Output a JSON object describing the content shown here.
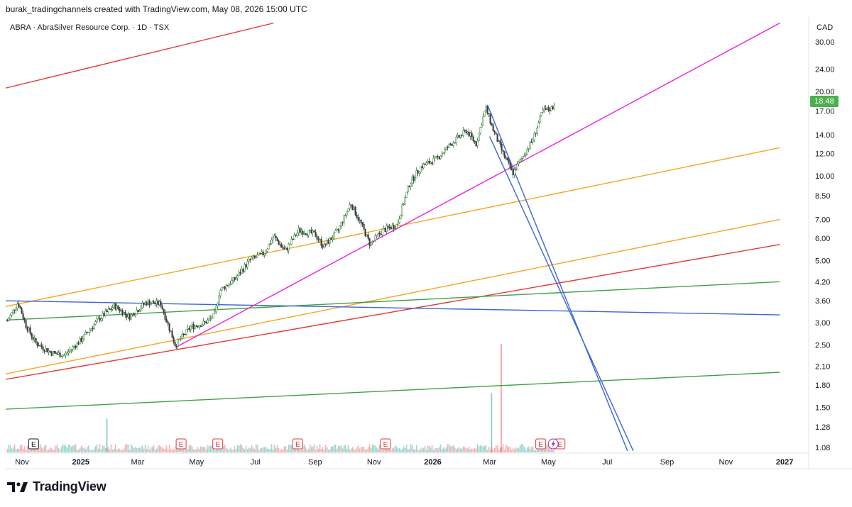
{
  "header": {
    "credit": "burak_tradingchannels created with TradingView.com, May 08, 2026 15:00 UTC"
  },
  "brand": {
    "name": "TradingView"
  },
  "chart_data": {
    "type": "candlestick",
    "title": "ABRA · AbraSilver Resource Corp. · 1D · TSX",
    "currency": "CAD",
    "last_price": "18.48",
    "y_scale": "log",
    "ylim": [
      1.05,
      33
    ],
    "y_ticks": [
      "30.00",
      "24.00",
      "20.00",
      "17.00",
      "14.00",
      "12.00",
      "10.00",
      "8.50",
      "7.00",
      "6.00",
      "5.00",
      "4.20",
      "3.60",
      "3.00",
      "2.50",
      "2.10",
      "1.80",
      "1.50",
      "1.28",
      "1.08"
    ],
    "x_ticks": [
      "Nov",
      "2025",
      "Mar",
      "May",
      "Jul",
      "Sep",
      "Nov",
      "2026",
      "Mar",
      "May",
      "Jul",
      "Sep",
      "Nov",
      "2027"
    ],
    "price_path": [
      [
        "2024-10-17",
        3.05
      ],
      [
        "2024-10-28",
        3.55
      ],
      [
        "2024-11-05",
        2.95
      ],
      [
        "2024-11-15",
        2.55
      ],
      [
        "2024-12-01",
        2.35
      ],
      [
        "2024-12-15",
        2.3
      ],
      [
        "2025-01-01",
        2.6
      ],
      [
        "2025-01-20",
        3.1
      ],
      [
        "2025-02-05",
        3.45
      ],
      [
        "2025-02-20",
        3.15
      ],
      [
        "2025-03-10",
        3.55
      ],
      [
        "2025-03-25",
        3.5
      ],
      [
        "2025-04-09",
        2.5
      ],
      [
        "2025-04-25",
        2.9
      ],
      [
        "2025-05-10",
        3.0
      ],
      [
        "2025-05-20",
        3.2
      ],
      [
        "2025-05-25",
        3.9
      ],
      [
        "2025-06-10",
        4.3
      ],
      [
        "2025-06-25",
        5.0
      ],
      [
        "2025-07-10",
        5.3
      ],
      [
        "2025-07-20",
        6.1
      ],
      [
        "2025-08-01",
        5.4
      ],
      [
        "2025-08-15",
        6.4
      ],
      [
        "2025-09-01",
        6.2
      ],
      [
        "2025-09-10",
        5.6
      ],
      [
        "2025-09-25",
        6.4
      ],
      [
        "2025-10-08",
        8.0
      ],
      [
        "2025-10-20",
        6.6
      ],
      [
        "2025-10-28",
        5.7
      ],
      [
        "2025-11-10",
        6.4
      ],
      [
        "2025-11-25",
        6.7
      ],
      [
        "2025-12-08",
        9.4
      ],
      [
        "2025-12-20",
        10.8
      ],
      [
        "2026-01-05",
        11.5
      ],
      [
        "2026-01-20",
        13.0
      ],
      [
        "2026-02-05",
        14.5
      ],
      [
        "2026-02-15",
        13.0
      ],
      [
        "2026-02-25",
        17.5
      ],
      [
        "2026-03-05",
        14.5
      ],
      [
        "2026-03-15",
        12.0
      ],
      [
        "2026-03-25",
        10.2
      ],
      [
        "2026-04-05",
        11.8
      ],
      [
        "2026-04-15",
        13.5
      ],
      [
        "2026-04-25",
        17.0
      ],
      [
        "2026-05-05",
        17.4
      ],
      [
        "2026-05-08",
        18.48
      ]
    ],
    "volume_spikes": [
      {
        "date": "2025-01-28",
        "value": 0.31
      },
      {
        "date": "2026-03-03",
        "value": 0.55
      },
      {
        "date": "2026-03-13",
        "value": 1.0
      }
    ],
    "earnings_markers": [
      "2024-11-13",
      "2025-04-15",
      "2025-05-23",
      "2025-08-14",
      "2025-11-13",
      "2026-04-23",
      "2026-05-13"
    ],
    "event_markers": [
      "2026-05-06"
    ],
    "trendlines": [
      {
        "color": "#e53935",
        "p1": [
          "2024-10-01",
          20.0
        ],
        "p2": [
          "2025-07-20",
          35.0
        ]
      },
      {
        "color": "#e53935",
        "p1": [
          "2024-10-01",
          1.85
        ],
        "p2": [
          "2026-12-27",
          5.7
        ]
      },
      {
        "color": "#f5a623",
        "p1": [
          "2024-10-01",
          1.93
        ],
        "p2": [
          "2026-12-27",
          7.0
        ]
      },
      {
        "color": "#f5a623",
        "p1": [
          "2024-10-01",
          3.35
        ],
        "p2": [
          "2026-12-27",
          12.6
        ]
      },
      {
        "color": "#43a047",
        "p1": [
          "2024-10-01",
          3.05
        ],
        "p2": [
          "2026-12-27",
          4.2
        ]
      },
      {
        "color": "#43a047",
        "p1": [
          "2024-10-01",
          1.47
        ],
        "p2": [
          "2026-12-27",
          2.0
        ]
      },
      {
        "color": "#3a66d6",
        "p1": [
          "2024-10-01",
          3.6
        ],
        "p2": [
          "2026-12-27",
          3.2
        ]
      },
      {
        "color": "#e91ee0",
        "p1": [
          "2025-04-09",
          2.45
        ],
        "p2": [
          "2026-12-27",
          35.0
        ]
      },
      {
        "color": "#3a66d6",
        "p1": [
          "2026-02-27",
          17.8
        ],
        "p2": [
          "2026-07-22",
          1.05
        ]
      },
      {
        "color": "#3a66d6",
        "p1": [
          "2026-03-01",
          13.8
        ],
        "p2": [
          "2026-07-28",
          1.05
        ]
      }
    ]
  }
}
